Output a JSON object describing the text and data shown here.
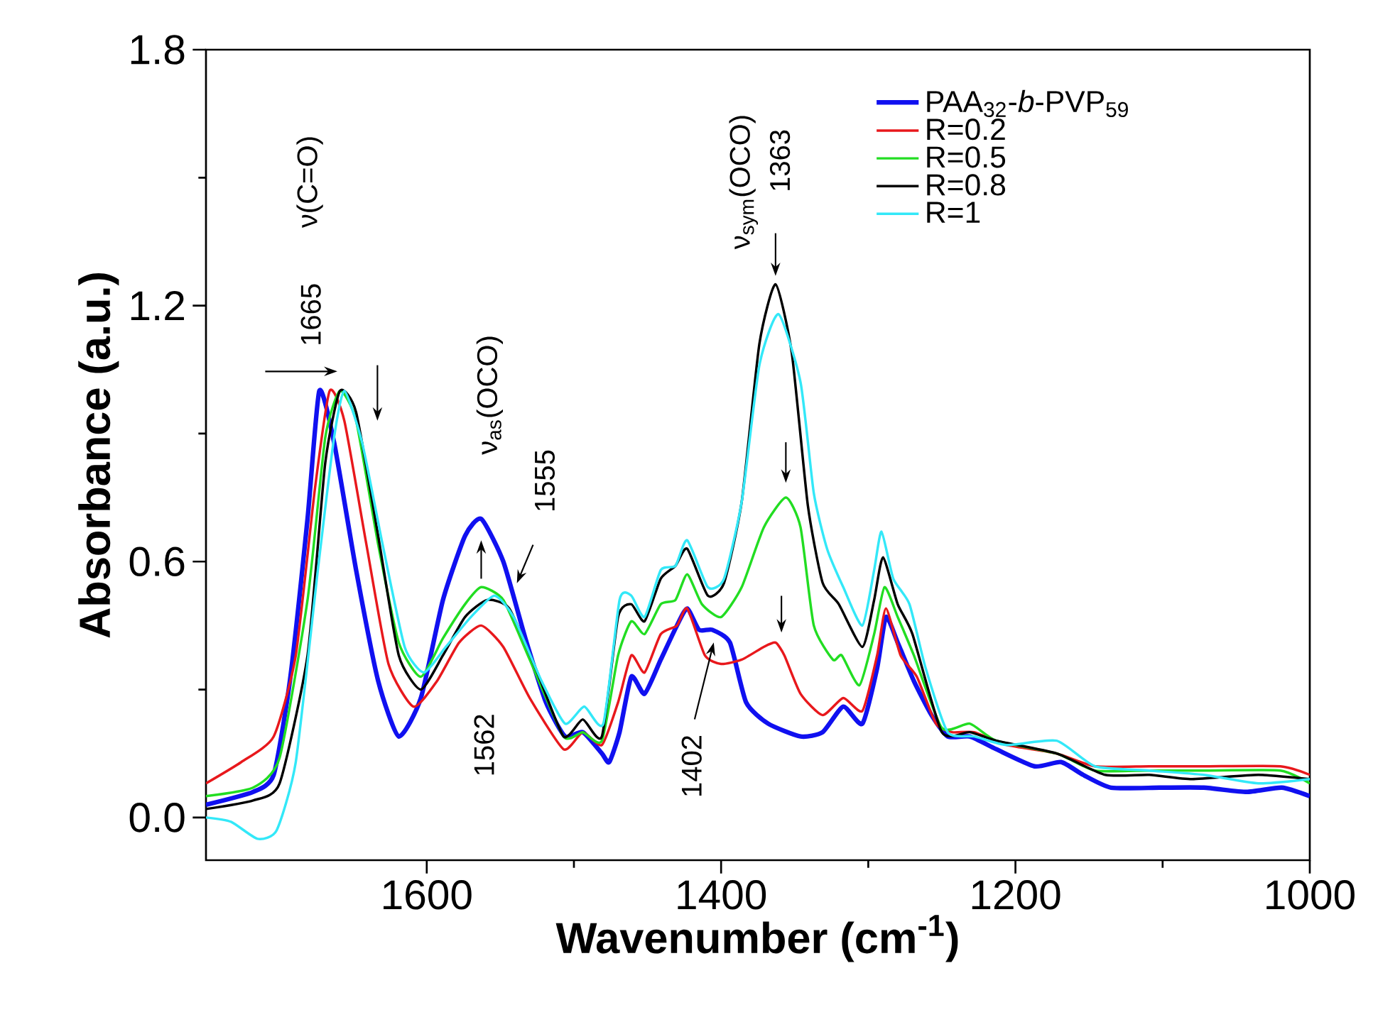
{
  "chart_data": {
    "type": "line",
    "xlabel": "Wavenumber (cm$^{-1}$)",
    "ylabel": "Absorbance (a.u.)",
    "xlim": [
      1750,
      1000
    ],
    "xticks": [
      1600,
      1400,
      1200,
      1000
    ],
    "ylim": [
      -0.1,
      1.8
    ],
    "yticks": [
      {
        "value": 0,
        "label": "0.0"
      },
      0.6,
      1.2,
      1.8
    ],
    "legend": "top right",
    "series": [
      {
        "name": "PAA$_{32}$-*b*-PVP$_{59}$",
        "color": "#1010f0",
        "x": [
          1750,
          1718,
          1704,
          1693,
          1681,
          1673,
          1663,
          1648,
          1633,
          1619,
          1604,
          1589,
          1574,
          1563,
          1548,
          1533,
          1519,
          1506,
          1494,
          1481,
          1476,
          1469,
          1461,
          1452,
          1441,
          1430,
          1423,
          1415,
          1406,
          1394,
          1383,
          1368,
          1346,
          1331,
          1317,
          1304,
          1294,
          1288,
          1280,
          1269,
          1257,
          1246,
          1231,
          1213,
          1187,
          1169,
          1154,
          1135,
          1102,
          1072,
          1043,
          1019,
          1000
        ],
        "values": [
          0.03,
          0.06,
          0.1,
          0.32,
          0.7,
          1.0,
          0.88,
          0.58,
          0.32,
          0.19,
          0.28,
          0.51,
          0.66,
          0.7,
          0.6,
          0.42,
          0.27,
          0.19,
          0.2,
          0.15,
          0.13,
          0.2,
          0.33,
          0.29,
          0.37,
          0.45,
          0.49,
          0.44,
          0.44,
          0.41,
          0.27,
          0.22,
          0.19,
          0.2,
          0.26,
          0.22,
          0.35,
          0.47,
          0.41,
          0.32,
          0.24,
          0.19,
          0.19,
          0.16,
          0.12,
          0.13,
          0.1,
          0.07,
          0.07,
          0.07,
          0.06,
          0.07,
          0.05
        ]
      },
      {
        "name": "R=0.2",
        "color": "#e8181c",
        "x": [
          1750,
          1726,
          1704,
          1689,
          1676,
          1666,
          1656,
          1641,
          1626,
          1609,
          1593,
          1578,
          1563,
          1548,
          1530,
          1507,
          1494,
          1481,
          1470,
          1461,
          1452,
          1441,
          1430,
          1423,
          1411,
          1400,
          1386,
          1371,
          1363,
          1357,
          1346,
          1331,
          1317,
          1304,
          1294,
          1288,
          1278,
          1267,
          1254,
          1243,
          1228,
          1206,
          1172,
          1146,
          1109,
          1072,
          1020,
          1000
        ],
        "values": [
          0.08,
          0.13,
          0.19,
          0.38,
          0.77,
          1.0,
          0.93,
          0.64,
          0.36,
          0.26,
          0.32,
          0.41,
          0.45,
          0.4,
          0.28,
          0.16,
          0.2,
          0.17,
          0.27,
          0.38,
          0.34,
          0.43,
          0.45,
          0.49,
          0.38,
          0.36,
          0.37,
          0.4,
          0.41,
          0.38,
          0.29,
          0.24,
          0.28,
          0.25,
          0.38,
          0.49,
          0.38,
          0.33,
          0.22,
          0.2,
          0.2,
          0.17,
          0.15,
          0.12,
          0.12,
          0.12,
          0.12,
          0.1
        ]
      },
      {
        "name": "R=0.5",
        "color": "#22dd22",
        "x": [
          1750,
          1718,
          1700,
          1681,
          1669,
          1659,
          1648,
          1633,
          1619,
          1604,
          1589,
          1574,
          1563,
          1548,
          1530,
          1507,
          1494,
          1481,
          1470,
          1461,
          1452,
          1441,
          1431,
          1423,
          1413,
          1400,
          1386,
          1371,
          1356,
          1346,
          1337,
          1324,
          1318,
          1306,
          1296,
          1289,
          1280,
          1269,
          1250,
          1231,
          1213,
          1172,
          1146,
          1109,
          1072,
          1020,
          1000
        ],
        "values": [
          0.05,
          0.07,
          0.14,
          0.51,
          0.89,
          1.0,
          0.93,
          0.64,
          0.41,
          0.33,
          0.42,
          0.5,
          0.54,
          0.51,
          0.37,
          0.19,
          0.2,
          0.18,
          0.38,
          0.46,
          0.43,
          0.5,
          0.51,
          0.57,
          0.5,
          0.47,
          0.54,
          0.68,
          0.75,
          0.68,
          0.45,
          0.37,
          0.38,
          0.31,
          0.43,
          0.54,
          0.47,
          0.38,
          0.21,
          0.22,
          0.18,
          0.15,
          0.11,
          0.11,
          0.11,
          0.11,
          0.08
        ]
      },
      {
        "name": "R=0.8",
        "color": "#000000",
        "x": [
          1750,
          1718,
          1700,
          1681,
          1669,
          1659,
          1648,
          1633,
          1619,
          1604,
          1589,
          1574,
          1559,
          1544,
          1526,
          1507,
          1494,
          1481,
          1470,
          1461,
          1452,
          1441,
          1431,
          1423,
          1409,
          1398,
          1386,
          1374,
          1363,
          1352,
          1341,
          1331,
          1320,
          1304,
          1296,
          1290,
          1280,
          1270,
          1250,
          1231,
          1213,
          1172,
          1139,
          1109,
          1080,
          1035,
          1000
        ],
        "values": [
          0.02,
          0.04,
          0.08,
          0.38,
          0.83,
          1.0,
          0.95,
          0.66,
          0.38,
          0.3,
          0.38,
          0.47,
          0.51,
          0.49,
          0.35,
          0.19,
          0.23,
          0.19,
          0.47,
          0.5,
          0.46,
          0.56,
          0.59,
          0.63,
          0.52,
          0.55,
          0.74,
          1.11,
          1.25,
          1.09,
          0.73,
          0.55,
          0.5,
          0.4,
          0.51,
          0.61,
          0.5,
          0.43,
          0.2,
          0.2,
          0.18,
          0.15,
          0.1,
          0.1,
          0.09,
          0.1,
          0.09
        ]
      },
      {
        "name": "R=1",
        "color": "#33e8f8",
        "x": [
          1750,
          1733,
          1715,
          1702,
          1689,
          1674,
          1663,
          1656,
          1644,
          1630,
          1615,
          1602,
          1587,
          1570,
          1554,
          1541,
          1522,
          1506,
          1493,
          1480,
          1469,
          1461,
          1452,
          1441,
          1431,
          1423,
          1409,
          1398,
          1386,
          1374,
          1361,
          1346,
          1337,
          1328,
          1317,
          1304,
          1296,
          1291,
          1283,
          1272,
          1261,
          1246,
          1228,
          1206,
          1172,
          1146,
          1109,
          1072,
          1035,
          1000
        ],
        "values": [
          0.0,
          -0.01,
          -0.05,
          -0.03,
          0.13,
          0.58,
          0.89,
          1.0,
          0.88,
          0.64,
          0.4,
          0.34,
          0.4,
          0.47,
          0.52,
          0.47,
          0.32,
          0.22,
          0.26,
          0.22,
          0.51,
          0.52,
          0.47,
          0.58,
          0.59,
          0.65,
          0.54,
          0.56,
          0.74,
          1.06,
          1.18,
          1.02,
          0.76,
          0.63,
          0.54,
          0.45,
          0.58,
          0.67,
          0.56,
          0.5,
          0.35,
          0.2,
          0.19,
          0.17,
          0.18,
          0.12,
          0.11,
          0.1,
          0.08,
          0.09
        ]
      }
    ],
    "annotations": [
      "1665",
      "ν(C=O)",
      "ν$_{as}$(OCO)",
      "1555",
      "1562",
      "1402",
      "ν$_{sym}$(OCO)",
      "1363"
    ]
  }
}
